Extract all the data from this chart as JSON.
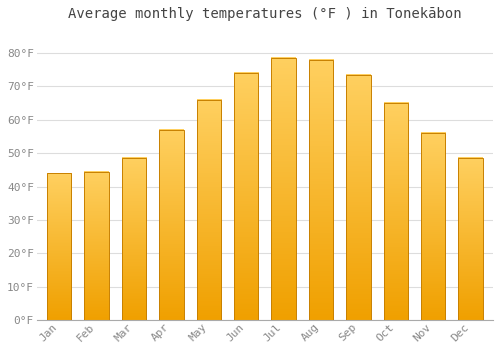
{
  "title": "Average monthly temperatures (°F ) in Tonekābon",
  "months": [
    "Jan",
    "Feb",
    "Mar",
    "Apr",
    "May",
    "Jun",
    "Jul",
    "Aug",
    "Sep",
    "Oct",
    "Nov",
    "Dec"
  ],
  "values": [
    44,
    44.5,
    48.5,
    57,
    66,
    74,
    78.5,
    78,
    73.5,
    65,
    56,
    48.5
  ],
  "bar_color_top": "#FFD060",
  "bar_color_bottom": "#F0A000",
  "bar_edge_color": "#C88000",
  "background_color": "#FFFFFF",
  "grid_color": "#DDDDDD",
  "ylim": [
    0,
    88
  ],
  "yticks": [
    0,
    10,
    20,
    30,
    40,
    50,
    60,
    70,
    80
  ],
  "ytick_labels": [
    "0°F",
    "10°F",
    "20°F",
    "30°F",
    "40°F",
    "50°F",
    "60°F",
    "70°F",
    "80°F"
  ],
  "title_fontsize": 10,
  "tick_fontsize": 8,
  "title_color": "#444444",
  "tick_color": "#888888",
  "bar_width": 0.65
}
